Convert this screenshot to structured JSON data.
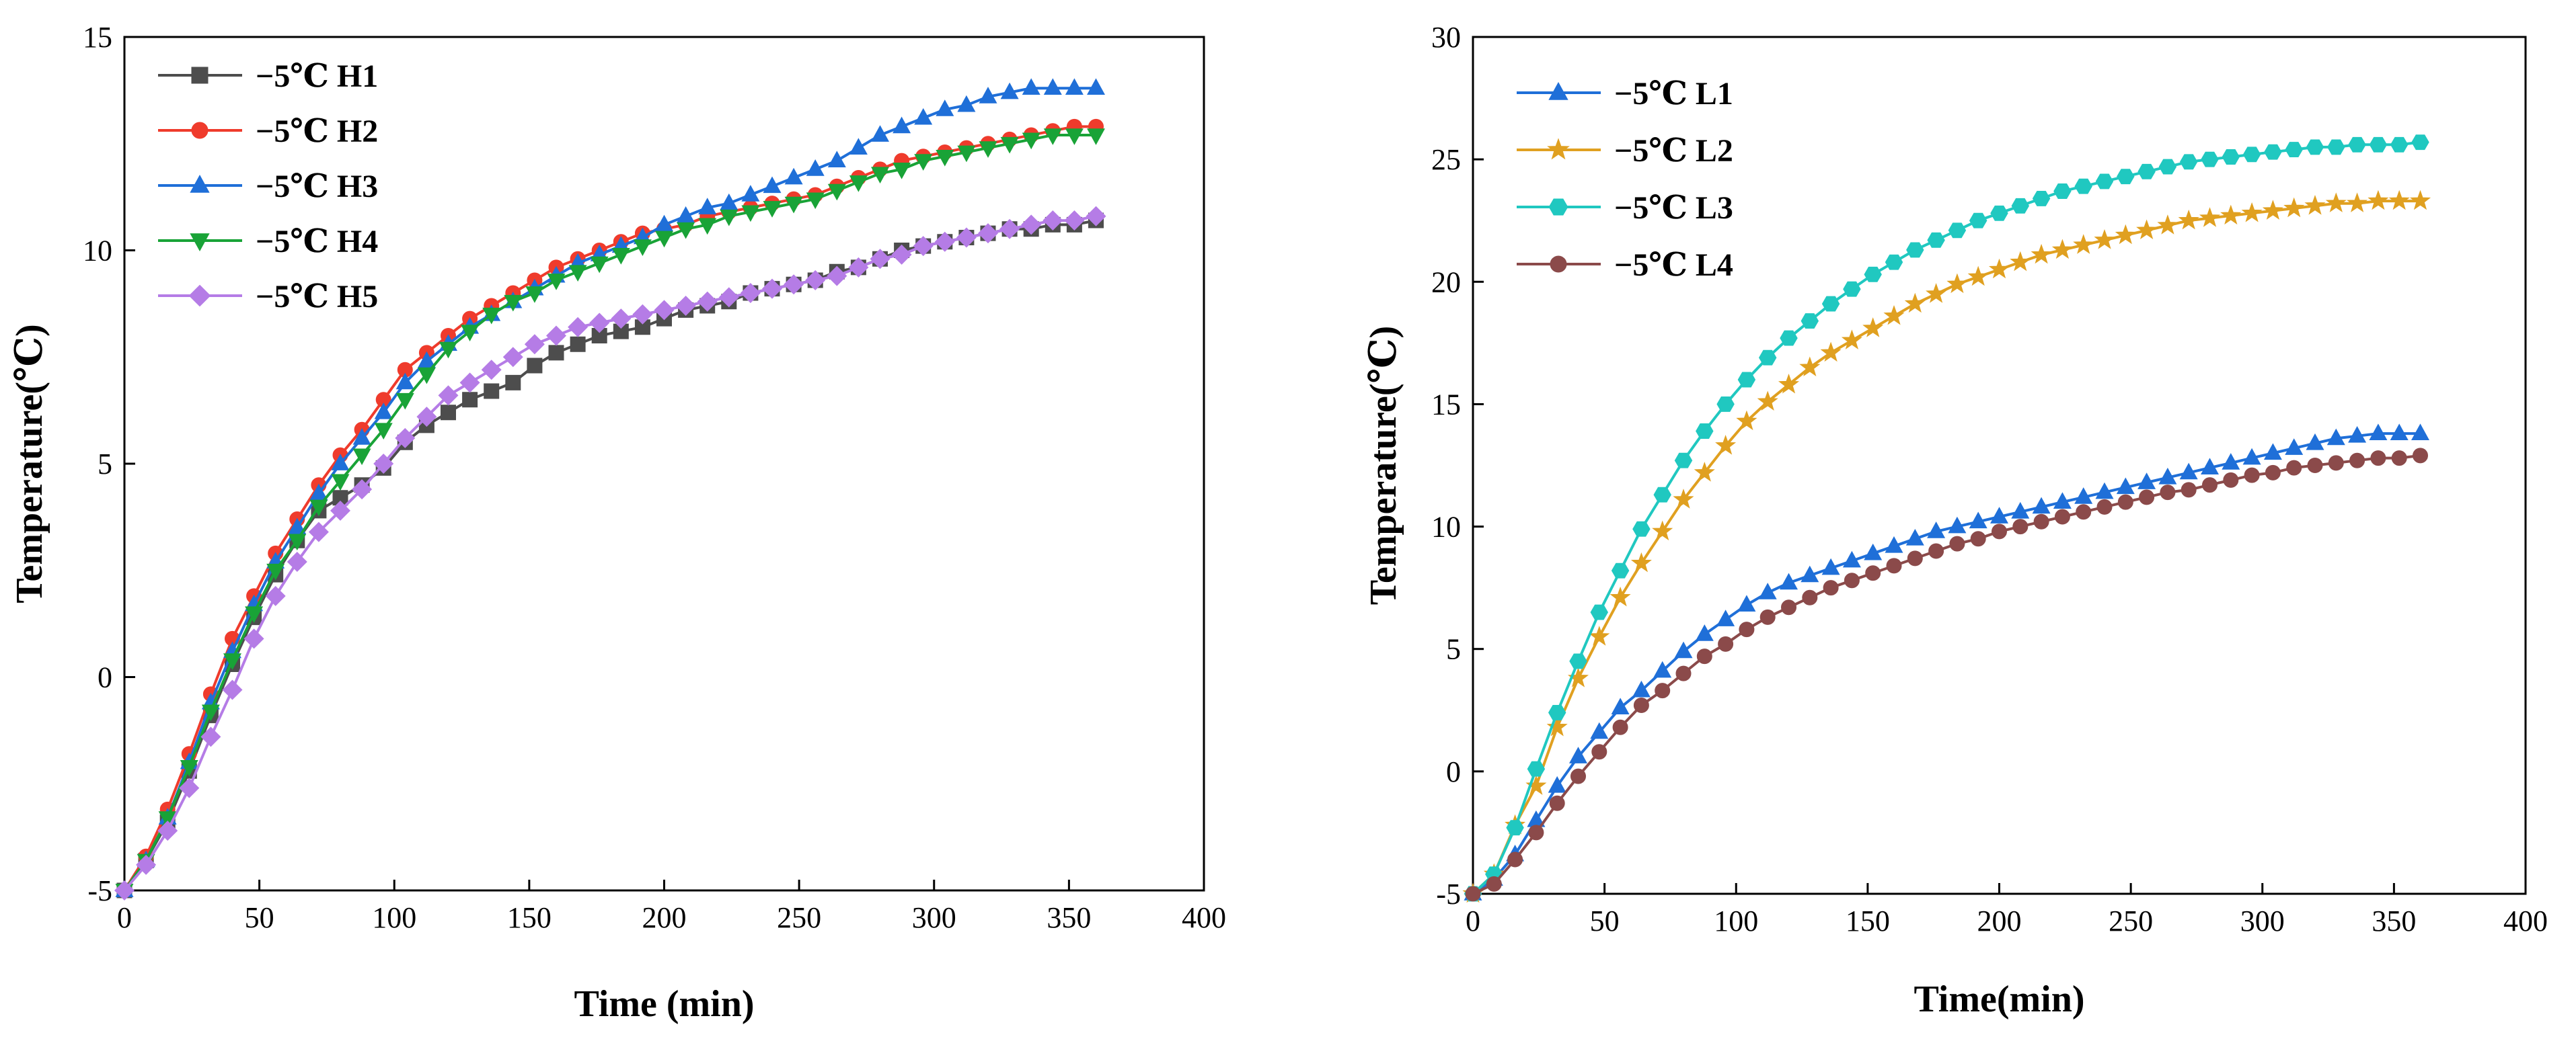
{
  "chart_data": [
    {
      "type": "line",
      "title": "",
      "xlabel": "Time (min)",
      "ylabel": "Temperature(℃)",
      "xlim": [
        0,
        400
      ],
      "ylim": [
        -5,
        15
      ],
      "xticks": [
        0,
        50,
        100,
        150,
        200,
        250,
        300,
        350,
        400
      ],
      "yticks": [
        -5,
        0,
        5,
        10,
        15
      ],
      "legend_position": "top-left",
      "x": [
        0,
        8,
        16,
        24,
        32,
        40,
        48,
        56,
        64,
        72,
        80,
        88,
        96,
        104,
        112,
        120,
        128,
        136,
        144,
        152,
        160,
        168,
        176,
        184,
        192,
        200,
        208,
        216,
        224,
        232,
        240,
        248,
        256,
        264,
        272,
        280,
        288,
        296,
        304,
        312,
        320,
        328,
        336,
        344,
        352,
        360
      ],
      "series": [
        {
          "name": "−5℃ H1",
          "color": "#4d4d4d",
          "marker": "square",
          "values": [
            -5,
            -4.3,
            -3.4,
            -2.2,
            -0.9,
            0.3,
            1.4,
            2.4,
            3.2,
            3.9,
            4.2,
            4.5,
            4.9,
            5.5,
            5.9,
            6.2,
            6.5,
            6.7,
            6.9,
            7.3,
            7.6,
            7.8,
            8.0,
            8.1,
            8.2,
            8.4,
            8.6,
            8.7,
            8.8,
            9.0,
            9.1,
            9.2,
            9.3,
            9.5,
            9.6,
            9.8,
            10.0,
            10.1,
            10.2,
            10.3,
            10.4,
            10.5,
            10.5,
            10.6,
            10.6,
            10.7
          ]
        },
        {
          "name": "−5℃ H2",
          "color": "#ef3b2c",
          "marker": "circle",
          "values": [
            -5,
            -4.2,
            -3.1,
            -1.8,
            -0.4,
            0.9,
            1.9,
            2.9,
            3.7,
            4.5,
            5.2,
            5.8,
            6.5,
            7.2,
            7.6,
            8.0,
            8.4,
            8.7,
            9.0,
            9.3,
            9.6,
            9.8,
            10.0,
            10.2,
            10.4,
            10.5,
            10.6,
            10.8,
            10.9,
            11.0,
            11.1,
            11.2,
            11.3,
            11.5,
            11.7,
            11.9,
            12.1,
            12.2,
            12.3,
            12.4,
            12.5,
            12.6,
            12.7,
            12.8,
            12.9,
            12.9
          ]
        },
        {
          "name": "−5℃ H3",
          "color": "#1f6fd8",
          "marker": "triangle-up",
          "values": [
            -5,
            -4.3,
            -3.3,
            -2.0,
            -0.6,
            0.6,
            1.7,
            2.7,
            3.5,
            4.3,
            5.0,
            5.6,
            6.2,
            6.9,
            7.4,
            7.8,
            8.2,
            8.5,
            8.8,
            9.1,
            9.4,
            9.7,
            9.9,
            10.1,
            10.3,
            10.6,
            10.8,
            11.0,
            11.1,
            11.3,
            11.5,
            11.7,
            11.9,
            12.1,
            12.4,
            12.7,
            12.9,
            13.1,
            13.3,
            13.4,
            13.6,
            13.7,
            13.8,
            13.8,
            13.8,
            13.8
          ]
        },
        {
          "name": "−5℃ H4",
          "color": "#19a337",
          "marker": "triangle-down",
          "values": [
            -5,
            -4.3,
            -3.3,
            -2.1,
            -0.8,
            0.4,
            1.5,
            2.5,
            3.2,
            4.0,
            4.6,
            5.2,
            5.8,
            6.5,
            7.1,
            7.7,
            8.1,
            8.5,
            8.8,
            9.0,
            9.3,
            9.5,
            9.7,
            9.9,
            10.1,
            10.3,
            10.5,
            10.6,
            10.8,
            10.9,
            11.0,
            11.1,
            11.2,
            11.4,
            11.6,
            11.8,
            11.9,
            12.1,
            12.2,
            12.3,
            12.4,
            12.5,
            12.6,
            12.7,
            12.7,
            12.7
          ]
        },
        {
          "name": "−5℃ H5",
          "color": "#b57ce6",
          "marker": "diamond",
          "values": [
            -5,
            -4.4,
            -3.6,
            -2.6,
            -1.4,
            -0.3,
            0.9,
            1.9,
            2.7,
            3.4,
            3.9,
            4.4,
            5.0,
            5.6,
            6.1,
            6.6,
            6.9,
            7.2,
            7.5,
            7.8,
            8.0,
            8.2,
            8.3,
            8.4,
            8.5,
            8.6,
            8.7,
            8.8,
            8.9,
            9.0,
            9.1,
            9.2,
            9.3,
            9.4,
            9.6,
            9.8,
            9.9,
            10.1,
            10.2,
            10.3,
            10.4,
            10.5,
            10.6,
            10.7,
            10.7,
            10.8
          ]
        }
      ]
    },
    {
      "type": "line",
      "title": "",
      "xlabel": "Time(min)",
      "ylabel": "Temperature(℃)",
      "xlim": [
        0,
        400
      ],
      "ylim": [
        -5,
        30
      ],
      "xticks": [
        0,
        50,
        100,
        150,
        200,
        250,
        300,
        350,
        400
      ],
      "yticks": [
        -5,
        0,
        5,
        10,
        15,
        20,
        25,
        30
      ],
      "legend_position": "top-left",
      "x": [
        0,
        8,
        16,
        24,
        32,
        40,
        48,
        56,
        64,
        72,
        80,
        88,
        96,
        104,
        112,
        120,
        128,
        136,
        144,
        152,
        160,
        168,
        176,
        184,
        192,
        200,
        208,
        216,
        224,
        232,
        240,
        248,
        256,
        264,
        272,
        280,
        288,
        296,
        304,
        312,
        320,
        328,
        336,
        344,
        352,
        360
      ],
      "series": [
        {
          "name": "−5℃ L1",
          "color": "#1f6fd8",
          "marker": "triangle-up",
          "values": [
            -5,
            -4.4,
            -3.4,
            -2.0,
            -0.6,
            0.6,
            1.6,
            2.6,
            3.3,
            4.1,
            4.9,
            5.6,
            6.2,
            6.8,
            7.3,
            7.7,
            8.0,
            8.3,
            8.6,
            8.9,
            9.2,
            9.5,
            9.8,
            10.0,
            10.2,
            10.4,
            10.6,
            10.8,
            11.0,
            11.2,
            11.4,
            11.6,
            11.8,
            12.0,
            12.2,
            12.4,
            12.6,
            12.8,
            13.0,
            13.2,
            13.4,
            13.6,
            13.7,
            13.8,
            13.8,
            13.8
          ]
        },
        {
          "name": "−5℃ L2",
          "color": "#e0a020",
          "marker": "star",
          "values": [
            -5,
            -4.2,
            -2.2,
            -0.6,
            1.8,
            3.8,
            5.5,
            7.1,
            8.5,
            9.8,
            11.1,
            12.2,
            13.3,
            14.3,
            15.1,
            15.8,
            16.5,
            17.1,
            17.6,
            18.1,
            18.6,
            19.1,
            19.5,
            19.9,
            20.2,
            20.5,
            20.8,
            21.1,
            21.3,
            21.5,
            21.7,
            21.9,
            22.1,
            22.3,
            22.5,
            22.6,
            22.7,
            22.8,
            22.9,
            23.0,
            23.1,
            23.2,
            23.2,
            23.3,
            23.3,
            23.3
          ]
        },
        {
          "name": "−5℃ L3",
          "color": "#20c8c0",
          "marker": "hexagon",
          "values": [
            -5,
            -4.2,
            -2.3,
            0.1,
            2.4,
            4.5,
            6.5,
            8.2,
            9.9,
            11.3,
            12.7,
            13.9,
            15.0,
            16.0,
            16.9,
            17.7,
            18.4,
            19.1,
            19.7,
            20.3,
            20.8,
            21.3,
            21.7,
            22.1,
            22.5,
            22.8,
            23.1,
            23.4,
            23.7,
            23.9,
            24.1,
            24.3,
            24.5,
            24.7,
            24.9,
            25.0,
            25.1,
            25.2,
            25.3,
            25.4,
            25.5,
            25.5,
            25.6,
            25.6,
            25.6,
            25.7
          ]
        },
        {
          "name": "−5℃ L4",
          "color": "#8b4a4a",
          "marker": "circle",
          "values": [
            -5,
            -4.6,
            -3.6,
            -2.5,
            -1.3,
            -0.2,
            0.8,
            1.8,
            2.7,
            3.3,
            4.0,
            4.7,
            5.2,
            5.8,
            6.3,
            6.7,
            7.1,
            7.5,
            7.8,
            8.1,
            8.4,
            8.7,
            9.0,
            9.3,
            9.5,
            9.8,
            10.0,
            10.2,
            10.4,
            10.6,
            10.8,
            11.0,
            11.2,
            11.4,
            11.5,
            11.7,
            11.9,
            12.1,
            12.2,
            12.4,
            12.5,
            12.6,
            12.7,
            12.8,
            12.8,
            12.9
          ]
        }
      ]
    }
  ]
}
